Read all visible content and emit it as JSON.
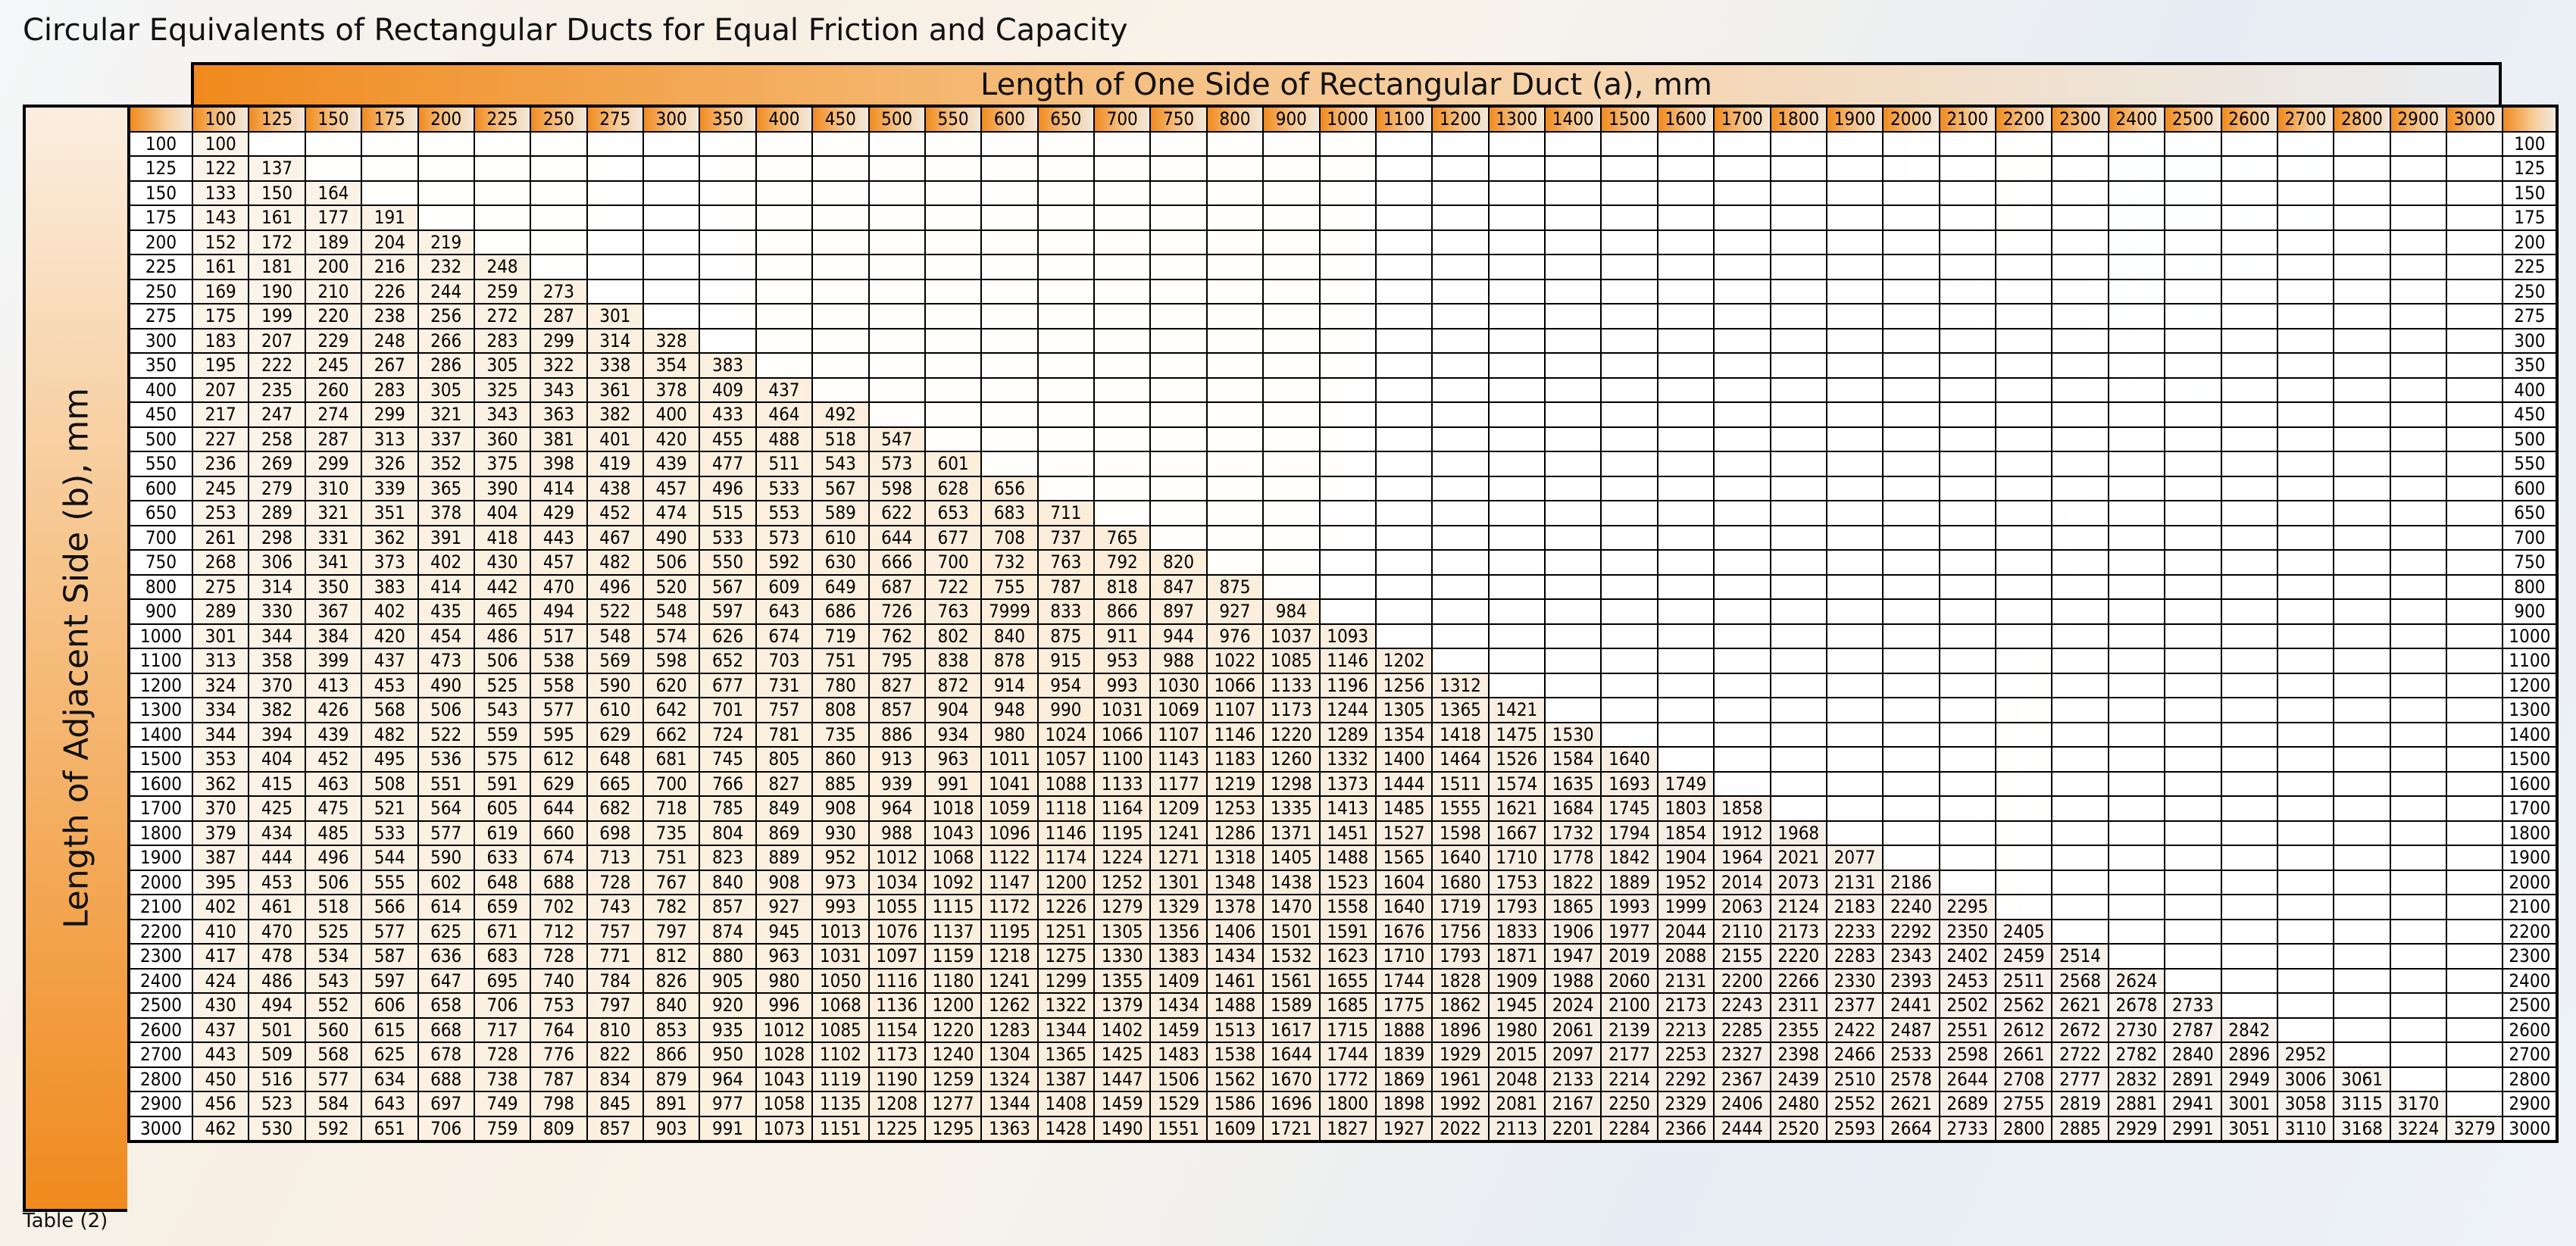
{
  "title": "Circular Equivalents of Rectangular Ducts for Equal Friction and Capacity",
  "column_axis_label": "Length of One Side of Rectangular Duct (a), mm",
  "row_axis_label": "Length of Adjacent Side (b), mm",
  "footnote": "Table (2)",
  "colors": {
    "accent": "#f08a1e",
    "grid": "#000000"
  },
  "table": {
    "columns": [
      "100",
      "125",
      "150",
      "175",
      "200",
      "225",
      "250",
      "275",
      "300",
      "350",
      "400",
      "450",
      "500",
      "550",
      "600",
      "650",
      "700",
      "750",
      "800",
      "900",
      "1000",
      "1100",
      "1200",
      "1300",
      "1400",
      "1500",
      "1600",
      "1700",
      "1800",
      "1900",
      "2000",
      "2100",
      "2200",
      "2300",
      "2400",
      "2500",
      "2600",
      "2700",
      "2800",
      "2900",
      "3000"
    ],
    "rows": [
      {
        "b": "100",
        "values": [
          "100"
        ]
      },
      {
        "b": "125",
        "values": [
          "122",
          "137"
        ]
      },
      {
        "b": "150",
        "values": [
          "133",
          "150",
          "164"
        ]
      },
      {
        "b": "175",
        "values": [
          "143",
          "161",
          "177",
          "191"
        ]
      },
      {
        "b": "200",
        "values": [
          "152",
          "172",
          "189",
          "204",
          "219"
        ]
      },
      {
        "b": "225",
        "values": [
          "161",
          "181",
          "200",
          "216",
          "232",
          "248"
        ]
      },
      {
        "b": "250",
        "values": [
          "169",
          "190",
          "210",
          "226",
          "244",
          "259",
          "273"
        ]
      },
      {
        "b": "275",
        "values": [
          "175",
          "199",
          "220",
          "238",
          "256",
          "272",
          "287",
          "301"
        ]
      },
      {
        "b": "300",
        "values": [
          "183",
          "207",
          "229",
          "248",
          "266",
          "283",
          "299",
          "314",
          "328"
        ]
      },
      {
        "b": "350",
        "values": [
          "195",
          "222",
          "245",
          "267",
          "286",
          "305",
          "322",
          "338",
          "354",
          "383"
        ]
      },
      {
        "b": "400",
        "values": [
          "207",
          "235",
          "260",
          "283",
          "305",
          "325",
          "343",
          "361",
          "378",
          "409",
          "437"
        ]
      },
      {
        "b": "450",
        "values": [
          "217",
          "247",
          "274",
          "299",
          "321",
          "343",
          "363",
          "382",
          "400",
          "433",
          "464",
          "492"
        ]
      },
      {
        "b": "500",
        "values": [
          "227",
          "258",
          "287",
          "313",
          "337",
          "360",
          "381",
          "401",
          "420",
          "455",
          "488",
          "518",
          "547"
        ]
      },
      {
        "b": "550",
        "values": [
          "236",
          "269",
          "299",
          "326",
          "352",
          "375",
          "398",
          "419",
          "439",
          "477",
          "511",
          "543",
          "573",
          "601"
        ]
      },
      {
        "b": "600",
        "values": [
          "245",
          "279",
          "310",
          "339",
          "365",
          "390",
          "414",
          "438",
          "457",
          "496",
          "533",
          "567",
          "598",
          "628",
          "656"
        ]
      },
      {
        "b": "650",
        "values": [
          "253",
          "289",
          "321",
          "351",
          "378",
          "404",
          "429",
          "452",
          "474",
          "515",
          "553",
          "589",
          "622",
          "653",
          "683",
          "711"
        ]
      },
      {
        "b": "700",
        "values": [
          "261",
          "298",
          "331",
          "362",
          "391",
          "418",
          "443",
          "467",
          "490",
          "533",
          "573",
          "610",
          "644",
          "677",
          "708",
          "737",
          "765"
        ]
      },
      {
        "b": "750",
        "values": [
          "268",
          "306",
          "341",
          "373",
          "402",
          "430",
          "457",
          "482",
          "506",
          "550",
          "592",
          "630",
          "666",
          "700",
          "732",
          "763",
          "792",
          "820"
        ]
      },
      {
        "b": "800",
        "values": [
          "275",
          "314",
          "350",
          "383",
          "414",
          "442",
          "470",
          "496",
          "520",
          "567",
          "609",
          "649",
          "687",
          "722",
          "755",
          "787",
          "818",
          "847",
          "875"
        ]
      },
      {
        "b": "900",
        "values": [
          "289",
          "330",
          "367",
          "402",
          "435",
          "465",
          "494",
          "522",
          "548",
          "597",
          "643",
          "686",
          "726",
          "763",
          "7999",
          "833",
          "866",
          "897",
          "927",
          "984"
        ]
      },
      {
        "b": "1000",
        "values": [
          "301",
          "344",
          "384",
          "420",
          "454",
          "486",
          "517",
          "548",
          "574",
          "626",
          "674",
          "719",
          "762",
          "802",
          "840",
          "875",
          "911",
          "944",
          "976",
          "1037",
          "1093"
        ]
      },
      {
        "b": "1100",
        "values": [
          "313",
          "358",
          "399",
          "437",
          "473",
          "506",
          "538",
          "569",
          "598",
          "652",
          "703",
          "751",
          "795",
          "838",
          "878",
          "915",
          "953",
          "988",
          "1022",
          "1085",
          "1146",
          "1202"
        ]
      },
      {
        "b": "1200",
        "values": [
          "324",
          "370",
          "413",
          "453",
          "490",
          "525",
          "558",
          "590",
          "620",
          "677",
          "731",
          "780",
          "827",
          "872",
          "914",
          "954",
          "993",
          "1030",
          "1066",
          "1133",
          "1196",
          "1256",
          "1312"
        ]
      },
      {
        "b": "1300",
        "values": [
          "334",
          "382",
          "426",
          "568",
          "506",
          "543",
          "577",
          "610",
          "642",
          "701",
          "757",
          "808",
          "857",
          "904",
          "948",
          "990",
          "1031",
          "1069",
          "1107",
          "1173",
          "1244",
          "1305",
          "1365",
          "1421"
        ]
      },
      {
        "b": "1400",
        "values": [
          "344",
          "394",
          "439",
          "482",
          "522",
          "559",
          "595",
          "629",
          "662",
          "724",
          "781",
          "735",
          "886",
          "934",
          "980",
          "1024",
          "1066",
          "1107",
          "1146",
          "1220",
          "1289",
          "1354",
          "1418",
          "1475",
          "1530"
        ]
      },
      {
        "b": "1500",
        "values": [
          "353",
          "404",
          "452",
          "495",
          "536",
          "575",
          "612",
          "648",
          "681",
          "745",
          "805",
          "860",
          "913",
          "963",
          "1011",
          "1057",
          "1100",
          "1143",
          "1183",
          "1260",
          "1332",
          "1400",
          "1464",
          "1526",
          "1584",
          "1640"
        ]
      },
      {
        "b": "1600",
        "values": [
          "362",
          "415",
          "463",
          "508",
          "551",
          "591",
          "629",
          "665",
          "700",
          "766",
          "827",
          "885",
          "939",
          "991",
          "1041",
          "1088",
          "1133",
          "1177",
          "1219",
          "1298",
          "1373",
          "1444",
          "1511",
          "1574",
          "1635",
          "1693",
          "1749"
        ]
      },
      {
        "b": "1700",
        "values": [
          "370",
          "425",
          "475",
          "521",
          "564",
          "605",
          "644",
          "682",
          "718",
          "785",
          "849",
          "908",
          "964",
          "1018",
          "1059",
          "1118",
          "1164",
          "1209",
          "1253",
          "1335",
          "1413",
          "1485",
          "1555",
          "1621",
          "1684",
          "1745",
          "1803",
          "1858"
        ]
      },
      {
        "b": "1800",
        "values": [
          "379",
          "434",
          "485",
          "533",
          "577",
          "619",
          "660",
          "698",
          "735",
          "804",
          "869",
          "930",
          "988",
          "1043",
          "1096",
          "1146",
          "1195",
          "1241",
          "1286",
          "1371",
          "1451",
          "1527",
          "1598",
          "1667",
          "1732",
          "1794",
          "1854",
          "1912",
          "1968"
        ]
      },
      {
        "b": "1900",
        "values": [
          "387",
          "444",
          "496",
          "544",
          "590",
          "633",
          "674",
          "713",
          "751",
          "823",
          "889",
          "952",
          "1012",
          "1068",
          "1122",
          "1174",
          "1224",
          "1271",
          "1318",
          "1405",
          "1488",
          "1565",
          "1640",
          "1710",
          "1778",
          "1842",
          "1904",
          "1964",
          "2021",
          "2077"
        ]
      },
      {
        "b": "2000",
        "values": [
          "395",
          "453",
          "506",
          "555",
          "602",
          "648",
          "688",
          "728",
          "767",
          "840",
          "908",
          "973",
          "1034",
          "1092",
          "1147",
          "1200",
          "1252",
          "1301",
          "1348",
          "1438",
          "1523",
          "1604",
          "1680",
          "1753",
          "1822",
          "1889",
          "1952",
          "2014",
          "2073",
          "2131",
          "2186"
        ]
      },
      {
        "b": "2100",
        "values": [
          "402",
          "461",
          "518",
          "566",
          "614",
          "659",
          "702",
          "743",
          "782",
          "857",
          "927",
          "993",
          "1055",
          "1115",
          "1172",
          "1226",
          "1279",
          "1329",
          "1378",
          "1470",
          "1558",
          "1640",
          "1719",
          "1793",
          "1865",
          "1993",
          "1999",
          "2063",
          "2124",
          "2183",
          "2240",
          "2295"
        ]
      },
      {
        "b": "2200",
        "values": [
          "410",
          "470",
          "525",
          "577",
          "625",
          "671",
          "712",
          "757",
          "797",
          "874",
          "945",
          "1013",
          "1076",
          "1137",
          "1195",
          "1251",
          "1305",
          "1356",
          "1406",
          "1501",
          "1591",
          "1676",
          "1756",
          "1833",
          "1906",
          "1977",
          "2044",
          "2110",
          "2173",
          "2233",
          "2292",
          "2350",
          "2405"
        ]
      },
      {
        "b": "2300",
        "values": [
          "417",
          "478",
          "534",
          "587",
          "636",
          "683",
          "728",
          "771",
          "812",
          "880",
          "963",
          "1031",
          "1097",
          "1159",
          "1218",
          "1275",
          "1330",
          "1383",
          "1434",
          "1532",
          "1623",
          "1710",
          "1793",
          "1871",
          "1947",
          "2019",
          "2088",
          "2155",
          "2220",
          "2283",
          "2343",
          "2402",
          "2459",
          "2514"
        ]
      },
      {
        "b": "2400",
        "values": [
          "424",
          "486",
          "543",
          "597",
          "647",
          "695",
          "740",
          "784",
          "826",
          "905",
          "980",
          "1050",
          "1116",
          "1180",
          "1241",
          "1299",
          "1355",
          "1409",
          "1461",
          "1561",
          "1655",
          "1744",
          "1828",
          "1909",
          "1988",
          "2060",
          "2131",
          "2200",
          "2266",
          "2330",
          "2393",
          "2453",
          "2511",
          "2568",
          "2624"
        ]
      },
      {
        "b": "2500",
        "values": [
          "430",
          "494",
          "552",
          "606",
          "658",
          "706",
          "753",
          "797",
          "840",
          "920",
          "996",
          "1068",
          "1136",
          "1200",
          "1262",
          "1322",
          "1379",
          "1434",
          "1488",
          "1589",
          "1685",
          "1775",
          "1862",
          "1945",
          "2024",
          "2100",
          "2173",
          "2243",
          "2311",
          "2377",
          "2441",
          "2502",
          "2562",
          "2621",
          "2678",
          "2733"
        ]
      },
      {
        "b": "2600",
        "values": [
          "437",
          "501",
          "560",
          "615",
          "668",
          "717",
          "764",
          "810",
          "853",
          "935",
          "1012",
          "1085",
          "1154",
          "1220",
          "1283",
          "1344",
          "1402",
          "1459",
          "1513",
          "1617",
          "1715",
          "1888",
          "1896",
          "1980",
          "2061",
          "2139",
          "2213",
          "2285",
          "2355",
          "2422",
          "2487",
          "2551",
          "2612",
          "2672",
          "2730",
          "2787",
          "2842"
        ]
      },
      {
        "b": "2700",
        "values": [
          "443",
          "509",
          "568",
          "625",
          "678",
          "728",
          "776",
          "822",
          "866",
          "950",
          "1028",
          "1102",
          "1173",
          "1240",
          "1304",
          "1365",
          "1425",
          "1483",
          "1538",
          "1644",
          "1744",
          "1839",
          "1929",
          "2015",
          "2097",
          "2177",
          "2253",
          "2327",
          "2398",
          "2466",
          "2533",
          "2598",
          "2661",
          "2722",
          "2782",
          "2840",
          "2896",
          "2952"
        ]
      },
      {
        "b": "2800",
        "values": [
          "450",
          "516",
          "577",
          "634",
          "688",
          "738",
          "787",
          "834",
          "879",
          "964",
          "1043",
          "1119",
          "1190",
          "1259",
          "1324",
          "1387",
          "1447",
          "1506",
          "1562",
          "1670",
          "1772",
          "1869",
          "1961",
          "2048",
          "2133",
          "2214",
          "2292",
          "2367",
          "2439",
          "2510",
          "2578",
          "2644",
          "2708",
          "2777",
          "2832",
          "2891",
          "2949",
          "3006",
          "3061"
        ]
      },
      {
        "b": "2900",
        "values": [
          "456",
          "523",
          "584",
          "643",
          "697",
          "749",
          "798",
          "845",
          "891",
          "977",
          "1058",
          "1135",
          "1208",
          "1277",
          "1344",
          "1408",
          "1459",
          "1529",
          "1586",
          "1696",
          "1800",
          "1898",
          "1992",
          "2081",
          "2167",
          "2250",
          "2329",
          "2406",
          "2480",
          "2552",
          "2621",
          "2689",
          "2755",
          "2819",
          "2881",
          "2941",
          "3001",
          "3058",
          "3115",
          "3170"
        ]
      },
      {
        "b": "3000",
        "values": [
          "462",
          "530",
          "592",
          "651",
          "706",
          "759",
          "809",
          "857",
          "903",
          "991",
          "1073",
          "1151",
          "1225",
          "1295",
          "1363",
          "1428",
          "1490",
          "1551",
          "1609",
          "1721",
          "1827",
          "1927",
          "2022",
          "2113",
          "2201",
          "2284",
          "2366",
          "2444",
          "2520",
          "2593",
          "2664",
          "2733",
          "2800",
          "2885",
          "2929",
          "2991",
          "3051",
          "3110",
          "3168",
          "3224",
          "3279"
        ]
      }
    ]
  }
}
